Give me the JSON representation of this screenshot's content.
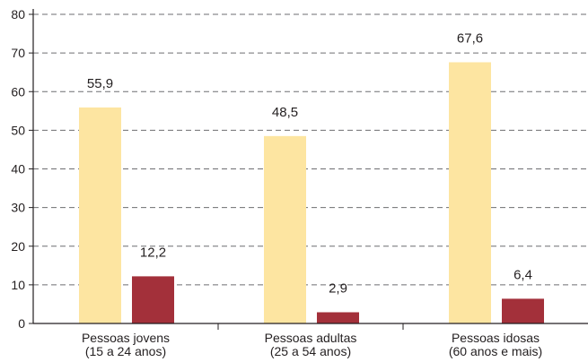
{
  "chart_data": {
    "type": "bar",
    "categories": [
      [
        "Pessoas jovens",
        "(15 a 24 anos)"
      ],
      [
        "Pessoas adultas",
        "(25 a 54 anos)"
      ],
      [
        "Pessoas idosas",
        "(60 anos e mais)"
      ]
    ],
    "series": [
      {
        "values": [
          55.9,
          48.5,
          67.6
        ],
        "labels": [
          "55,9",
          "48,5",
          "67,6"
        ],
        "color": "#fde5a1"
      },
      {
        "values": [
          12.2,
          2.9,
          6.4
        ],
        "labels": [
          "12,2",
          "2,9",
          "6,4"
        ],
        "color": "#a3303a"
      }
    ],
    "ylim": [
      0,
      80
    ],
    "yticks": [
      "0",
      "10",
      "20",
      "30",
      "40",
      "50",
      "60",
      "70",
      "80"
    ],
    "grid": true,
    "legend": "none"
  }
}
